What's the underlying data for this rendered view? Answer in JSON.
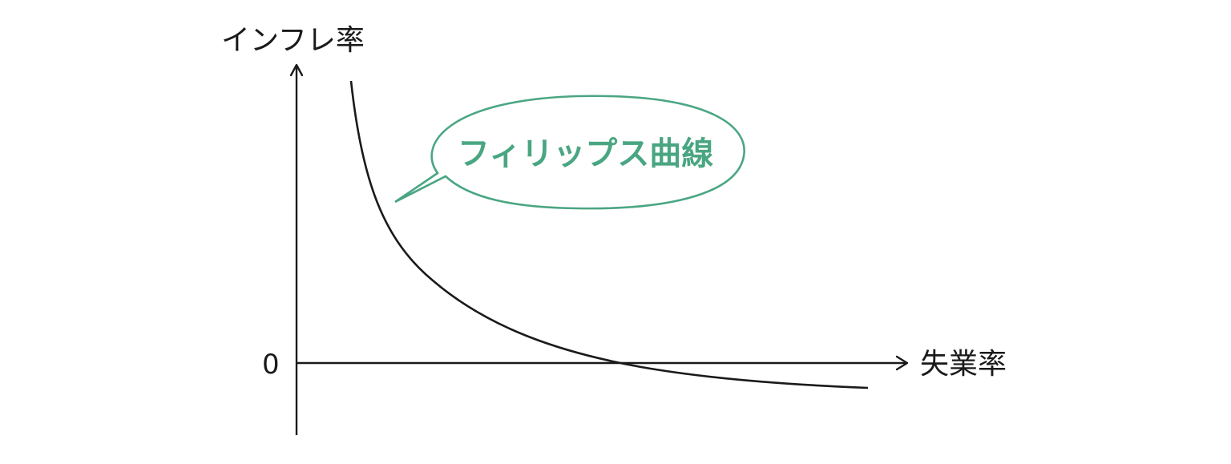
{
  "labels": {
    "y_axis": "インフレ率",
    "x_axis": "失業率",
    "origin": "0",
    "curve_callout": "フィリップス曲線"
  },
  "colors": {
    "axis": "#1a1a1a",
    "curve": "#1a1a1a",
    "callout": "#4aa682"
  }
}
